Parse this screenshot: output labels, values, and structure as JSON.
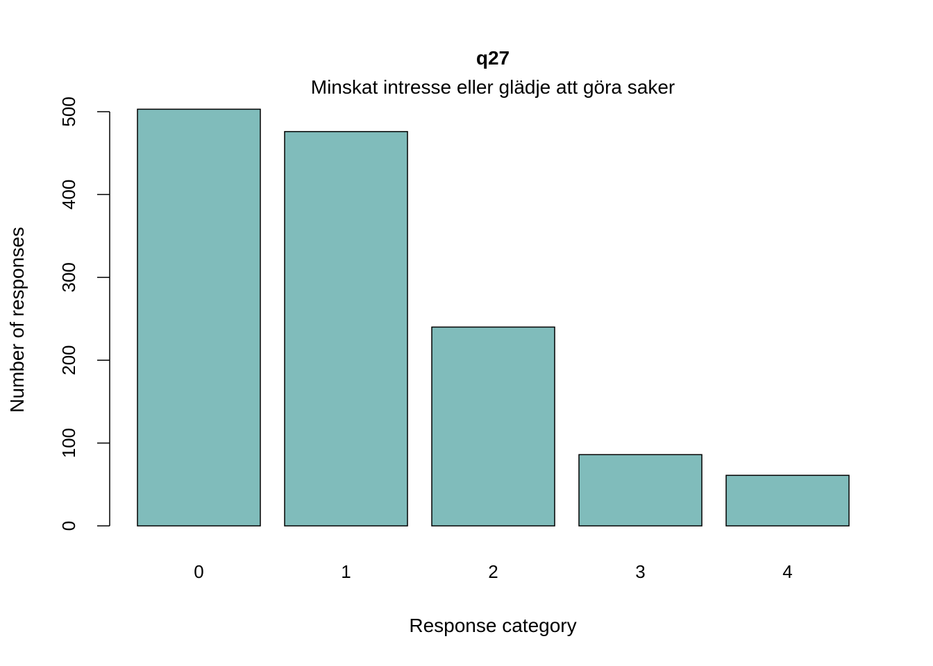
{
  "chart_data": {
    "type": "bar",
    "title": "q27",
    "subtitle": "Minskat intresse eller glädje att göra saker",
    "xlabel": "Response category",
    "ylabel": "Number of responses",
    "categories": [
      "0",
      "1",
      "2",
      "3",
      "4"
    ],
    "values": [
      503,
      476,
      240,
      86,
      61
    ],
    "ylim": [
      0,
      500
    ],
    "yticks": [
      "0",
      "100",
      "200",
      "300",
      "400",
      "500"
    ],
    "bar_color": "#80BCBB",
    "grid": false,
    "legend": "none"
  }
}
